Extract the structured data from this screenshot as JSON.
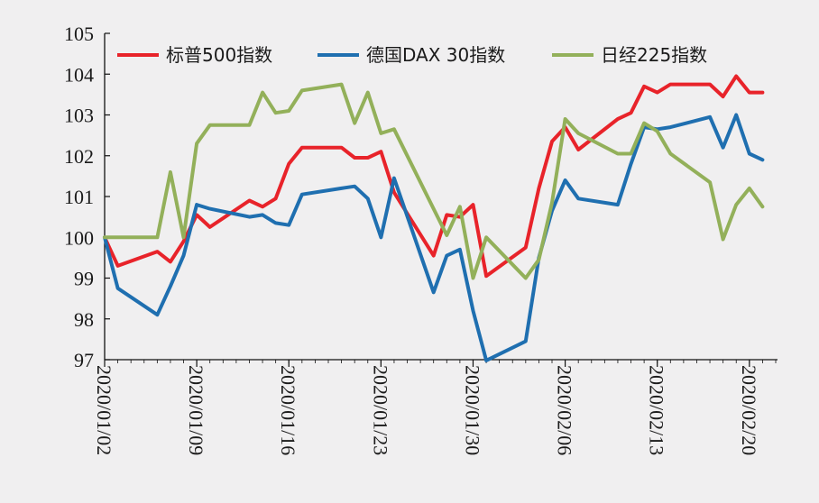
{
  "chart_data": {
    "type": "line",
    "title": "",
    "xlabel": "",
    "ylabel": "",
    "ylim": [
      97,
      105
    ],
    "yticks": [
      97,
      98,
      99,
      100,
      101,
      102,
      103,
      104,
      105
    ],
    "x_tick_labels": [
      "2020/01/02",
      "2020/01/09",
      "2020/01/16",
      "2020/01/23",
      "2020/01/30",
      "2020/02/06",
      "2020/02/13",
      "2020/02/20"
    ],
    "legend_position": "top",
    "grid": false,
    "series": [
      {
        "name": "标普500指数",
        "color": "#e8232a",
        "points": [
          [
            "2020/01/02",
            100.0
          ],
          [
            "2020/01/03",
            99.3
          ],
          [
            "2020/01/06",
            99.65
          ],
          [
            "2020/01/07",
            99.4
          ],
          [
            "2020/01/08",
            99.9
          ],
          [
            "2020/01/09",
            100.55
          ],
          [
            "2020/01/10",
            100.25
          ],
          [
            "2020/01/13",
            100.9
          ],
          [
            "2020/01/14",
            100.75
          ],
          [
            "2020/01/15",
            100.95
          ],
          [
            "2020/01/16",
            101.8
          ],
          [
            "2020/01/17",
            102.2
          ],
          [
            "2020/01/20",
            102.2
          ],
          [
            "2020/01/21",
            101.95
          ],
          [
            "2020/01/22",
            101.95
          ],
          [
            "2020/01/23",
            102.1
          ],
          [
            "2020/01/24",
            101.1
          ],
          [
            "2020/01/27",
            99.55
          ],
          [
            "2020/01/28",
            100.55
          ],
          [
            "2020/01/29",
            100.5
          ],
          [
            "2020/01/30",
            100.8
          ],
          [
            "2020/01/31",
            99.05
          ],
          [
            "2020/02/03",
            99.75
          ],
          [
            "2020/02/04",
            101.2
          ],
          [
            "2020/02/05",
            102.35
          ],
          [
            "2020/02/06",
            102.7
          ],
          [
            "2020/02/07",
            102.15
          ],
          [
            "2020/02/10",
            102.9
          ],
          [
            "2020/02/11",
            103.05
          ],
          [
            "2020/02/12",
            103.7
          ],
          [
            "2020/02/13",
            103.55
          ],
          [
            "2020/02/14",
            103.75
          ],
          [
            "2020/02/17",
            103.75
          ],
          [
            "2020/02/18",
            103.45
          ],
          [
            "2020/02/19",
            103.95
          ],
          [
            "2020/02/20",
            103.55
          ],
          [
            "2020/02/21",
            103.55
          ]
        ]
      },
      {
        "name": "德国DAX 30指数",
        "color": "#1f6fb0",
        "points": [
          [
            "2020/01/02",
            100.0
          ],
          [
            "2020/01/03",
            98.75
          ],
          [
            "2020/01/06",
            98.1
          ],
          [
            "2020/01/07",
            98.8
          ],
          [
            "2020/01/08",
            99.55
          ],
          [
            "2020/01/09",
            100.8
          ],
          [
            "2020/01/10",
            100.7
          ],
          [
            "2020/01/13",
            100.5
          ],
          [
            "2020/01/14",
            100.55
          ],
          [
            "2020/01/15",
            100.35
          ],
          [
            "2020/01/16",
            100.3
          ],
          [
            "2020/01/17",
            101.05
          ],
          [
            "2020/01/20",
            101.2
          ],
          [
            "2020/01/21",
            101.25
          ],
          [
            "2020/01/22",
            100.95
          ],
          [
            "2020/01/23",
            100.0
          ],
          [
            "2020/01/24",
            101.45
          ],
          [
            "2020/01/27",
            98.65
          ],
          [
            "2020/01/28",
            99.55
          ],
          [
            "2020/01/29",
            99.7
          ],
          [
            "2020/01/30",
            98.2
          ],
          [
            "2020/01/31",
            96.98
          ],
          [
            "2020/02/03",
            97.45
          ],
          [
            "2020/02/04",
            99.5
          ],
          [
            "2020/02/05",
            100.65
          ],
          [
            "2020/02/06",
            101.4
          ],
          [
            "2020/02/07",
            100.95
          ],
          [
            "2020/02/10",
            100.8
          ],
          [
            "2020/02/11",
            101.8
          ],
          [
            "2020/02/12",
            102.7
          ],
          [
            "2020/02/13",
            102.65
          ],
          [
            "2020/02/14",
            102.7
          ],
          [
            "2020/02/17",
            102.95
          ],
          [
            "2020/02/18",
            102.2
          ],
          [
            "2020/02/19",
            103.0
          ],
          [
            "2020/02/20",
            102.05
          ],
          [
            "2020/02/21",
            101.9
          ]
        ]
      },
      {
        "name": "日经225指数",
        "color": "#93b05a",
        "points": [
          [
            "2020/01/02",
            100.0
          ],
          [
            "2020/01/03",
            100.0
          ],
          [
            "2020/01/06",
            100.0
          ],
          [
            "2020/01/07",
            101.6
          ],
          [
            "2020/01/08",
            100.0
          ],
          [
            "2020/01/09",
            102.3
          ],
          [
            "2020/01/10",
            102.75
          ],
          [
            "2020/01/13",
            102.75
          ],
          [
            "2020/01/14",
            103.55
          ],
          [
            "2020/01/15",
            103.05
          ],
          [
            "2020/01/16",
            103.1
          ],
          [
            "2020/01/17",
            103.6
          ],
          [
            "2020/01/20",
            103.75
          ],
          [
            "2020/01/21",
            102.8
          ],
          [
            "2020/01/22",
            103.55
          ],
          [
            "2020/01/23",
            102.55
          ],
          [
            "2020/01/24",
            102.65
          ],
          [
            "2020/01/27",
            100.7
          ],
          [
            "2020/01/28",
            100.05
          ],
          [
            "2020/01/29",
            100.75
          ],
          [
            "2020/01/30",
            99.0
          ],
          [
            "2020/01/31",
            100.0
          ],
          [
            "2020/02/03",
            99.0
          ],
          [
            "2020/02/04",
            99.45
          ],
          [
            "2020/02/05",
            100.85
          ],
          [
            "2020/02/06",
            102.9
          ],
          [
            "2020/02/07",
            102.55
          ],
          [
            "2020/02/10",
            102.05
          ],
          [
            "2020/02/11",
            102.05
          ],
          [
            "2020/02/12",
            102.8
          ],
          [
            "2020/02/13",
            102.6
          ],
          [
            "2020/02/14",
            102.05
          ],
          [
            "2020/02/17",
            101.35
          ],
          [
            "2020/02/18",
            99.95
          ],
          [
            "2020/02/19",
            100.8
          ],
          [
            "2020/02/20",
            101.2
          ],
          [
            "2020/02/21",
            100.75
          ]
        ]
      }
    ]
  }
}
